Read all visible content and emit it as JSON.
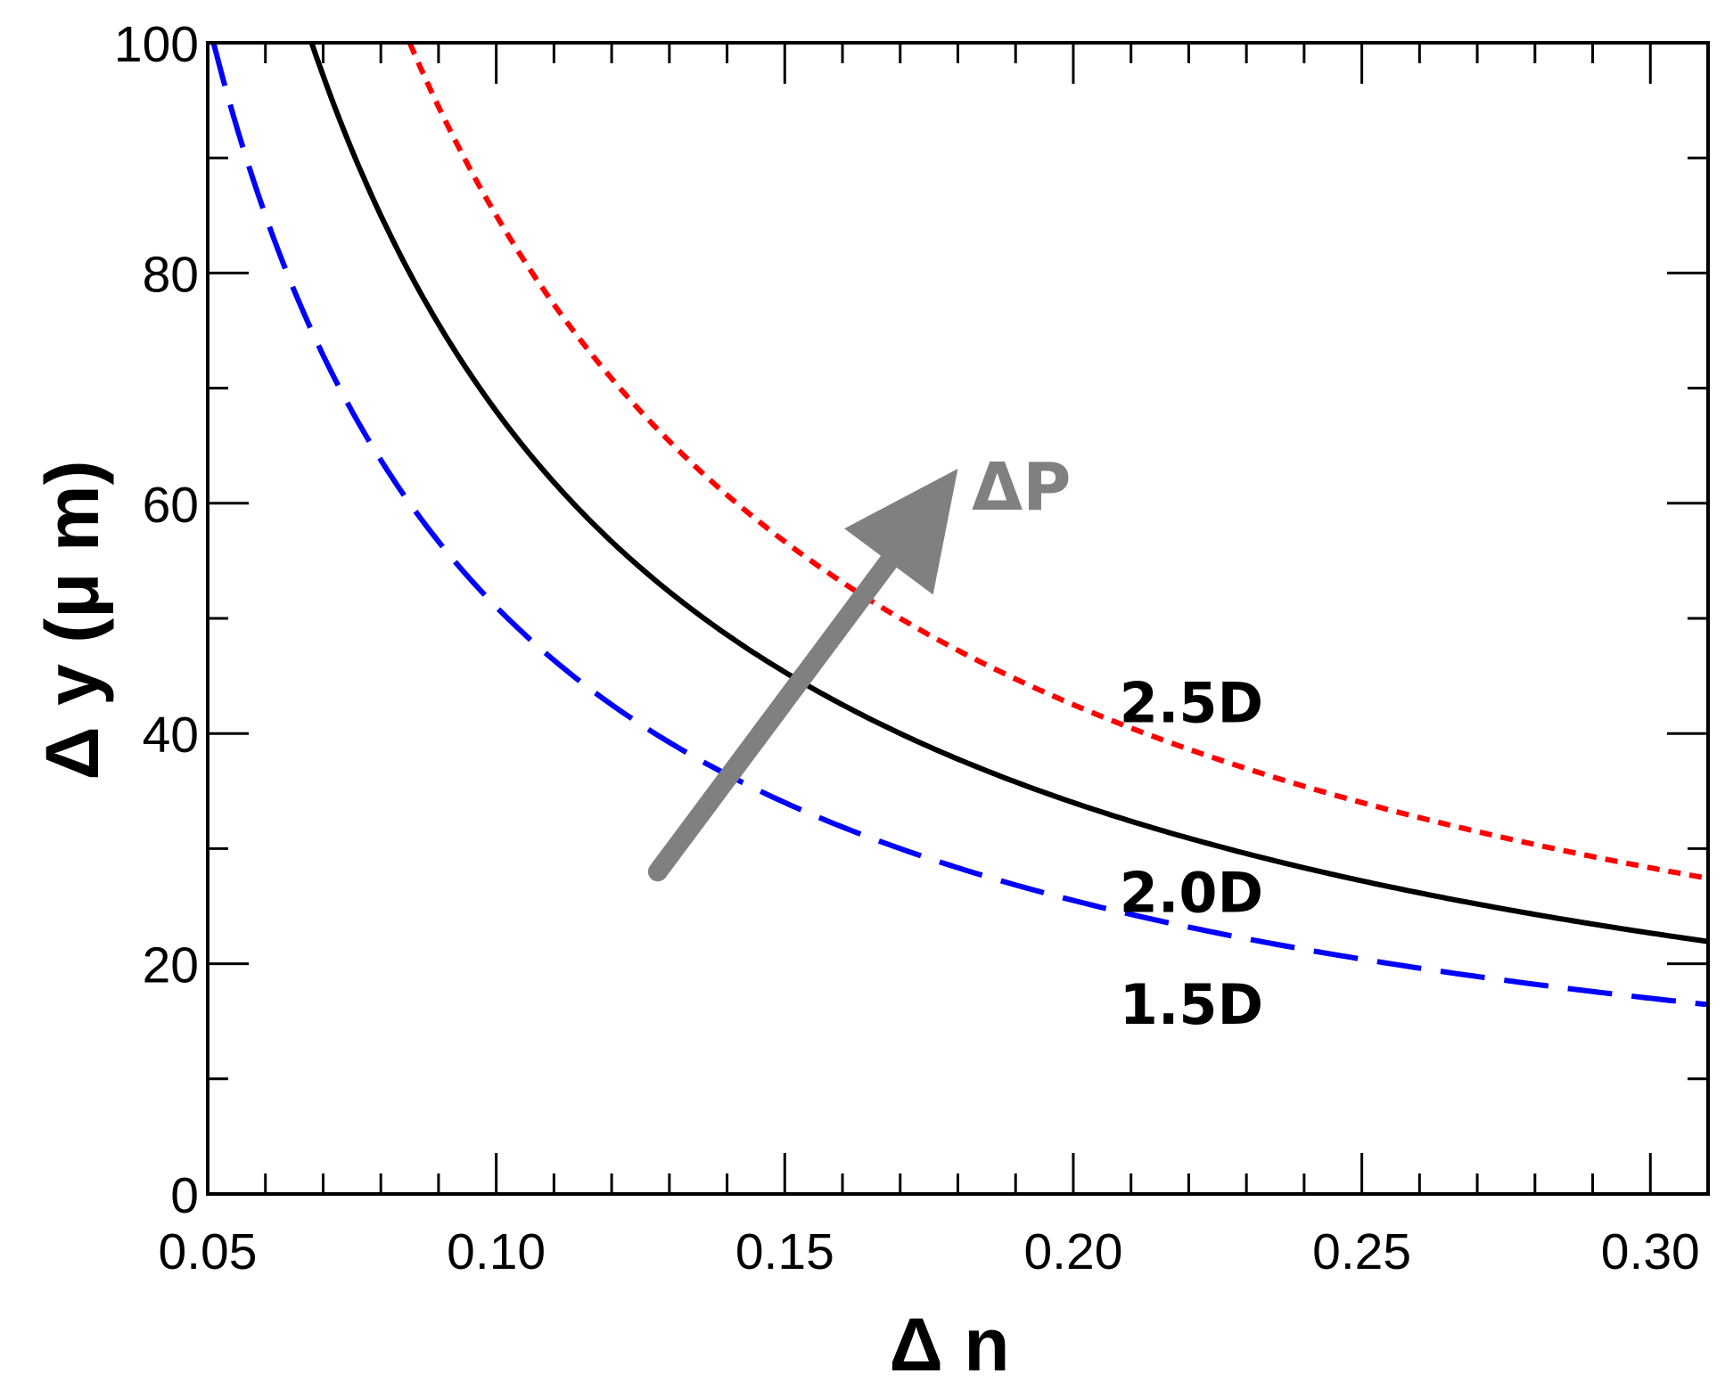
{
  "chart_data": {
    "type": "line",
    "title": "",
    "xlabel": "Δ n",
    "ylabel": "Δ y (μ m)",
    "xlim": [
      0.05,
      0.31
    ],
    "ylim": [
      0,
      100
    ],
    "x_ticks": [
      0.05,
      0.1,
      0.15,
      0.2,
      0.25,
      0.3
    ],
    "x_tick_labels": [
      "0.05",
      "0.10",
      "0.15",
      "0.20",
      "0.25",
      "0.30"
    ],
    "y_ticks": [
      0,
      20,
      40,
      60,
      80,
      100
    ],
    "y_tick_labels": [
      "0",
      "20",
      "40",
      "60",
      "80",
      "100"
    ],
    "grid": false,
    "series": [
      {
        "name": "1.5D",
        "label": "1.5D",
        "k": 5.1,
        "style": "dashed",
        "color": "#0000ff",
        "x": [
          0.051,
          0.06,
          0.08,
          0.1,
          0.12,
          0.14,
          0.16,
          0.18,
          0.2,
          0.22,
          0.24,
          0.26,
          0.28,
          0.31
        ],
        "values": [
          100.0,
          85.0,
          63.8,
          51.0,
          42.5,
          36.4,
          31.9,
          28.3,
          25.5,
          23.2,
          21.3,
          19.6,
          18.2,
          16.5
        ]
      },
      {
        "name": "2.0D",
        "label": "2.0D",
        "k": 6.8,
        "style": "solid",
        "color": "#000000",
        "x": [
          0.068,
          0.08,
          0.1,
          0.12,
          0.14,
          0.16,
          0.18,
          0.2,
          0.22,
          0.24,
          0.26,
          0.28,
          0.31
        ],
        "values": [
          100.0,
          85.0,
          68.0,
          56.7,
          48.6,
          42.5,
          37.8,
          34.0,
          30.9,
          28.3,
          26.2,
          24.3,
          21.9
        ]
      },
      {
        "name": "2.5D",
        "label": "2.5D",
        "k": 8.5,
        "style": "dotted",
        "color": "#ff0000",
        "x": [
          0.085,
          0.1,
          0.12,
          0.14,
          0.16,
          0.18,
          0.2,
          0.22,
          0.24,
          0.26,
          0.28,
          0.31
        ],
        "values": [
          100.0,
          85.0,
          70.8,
          60.7,
          53.1,
          47.2,
          42.5,
          38.6,
          35.4,
          32.7,
          30.4,
          27.4
        ]
      }
    ],
    "annotations": [
      {
        "text": "ΔP",
        "color": "#808080",
        "arrow_from": [
          0.128,
          28
        ],
        "arrow_to": [
          0.18,
          63
        ]
      }
    ],
    "label_positions": [
      {
        "series": "2.5D",
        "x": 0.208,
        "y": 41
      },
      {
        "series": "2.0D",
        "x": 0.208,
        "y": 24.5
      },
      {
        "series": "1.5D",
        "x": 0.208,
        "y": 14.8
      }
    ]
  }
}
